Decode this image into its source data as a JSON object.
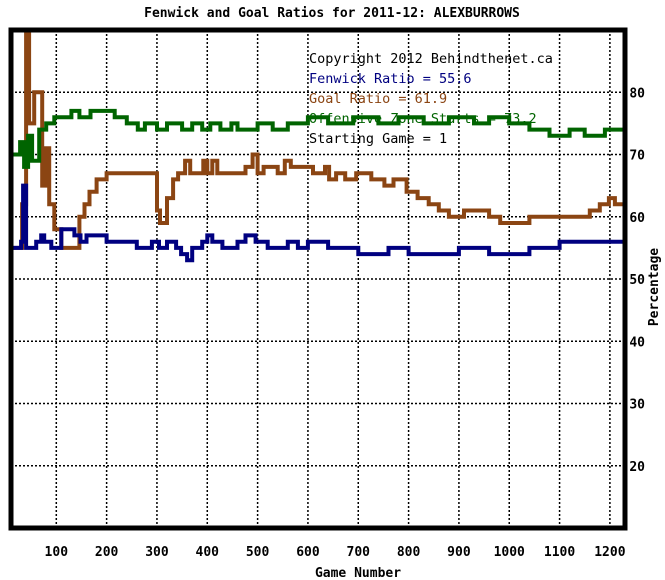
{
  "chart_data": {
    "type": "line",
    "title": "Fenwick and Goal Ratios for 2011-12: ALEXBURROWS",
    "xlabel": "Game Number",
    "ylabel": "Percentage",
    "xlim": [
      10,
      1230
    ],
    "ylim": [
      10,
      90
    ],
    "x_ticks": [
      100,
      200,
      300,
      400,
      500,
      600,
      700,
      800,
      900,
      1000,
      1100,
      1200
    ],
    "y_ticks": [
      20,
      30,
      40,
      50,
      60,
      70,
      80
    ],
    "grid": true,
    "legend_position": "top-right",
    "annotations": [
      {
        "text": "Copyright 2012 Behindthenet.ca",
        "color": "#000000"
      },
      {
        "text": "Fenwick Ratio = 55.6",
        "color": "#000080"
      },
      {
        "text": "Goal Ratio = 61.9",
        "color": "#8b4513"
      },
      {
        "text": "Offensive Zone Starts = 73.2",
        "color": "#006400"
      },
      {
        "text": "Starting Game = 1",
        "color": "#000000"
      }
    ],
    "series": [
      {
        "color": "#8b4513",
        "points": [
          [
            10,
            55
          ],
          [
            32,
            55
          ],
          [
            32,
            62
          ],
          [
            40,
            62
          ],
          [
            40,
            90
          ],
          [
            46,
            90
          ],
          [
            46,
            75
          ],
          [
            56,
            75
          ],
          [
            56,
            80
          ],
          [
            72,
            80
          ],
          [
            72,
            65
          ],
          [
            80,
            65
          ],
          [
            80,
            71
          ],
          [
            86,
            71
          ],
          [
            86,
            62
          ],
          [
            96,
            62
          ],
          [
            96,
            58
          ],
          [
            110,
            58
          ],
          [
            110,
            55
          ],
          [
            146,
            55
          ],
          [
            146,
            60
          ],
          [
            156,
            60
          ],
          [
            156,
            62
          ],
          [
            166,
            62
          ],
          [
            166,
            64
          ],
          [
            180,
            64
          ],
          [
            180,
            66
          ],
          [
            200,
            66
          ],
          [
            200,
            67
          ],
          [
            300,
            67
          ],
          [
            300,
            61
          ],
          [
            306,
            61
          ],
          [
            306,
            59
          ],
          [
            320,
            59
          ],
          [
            320,
            63
          ],
          [
            332,
            63
          ],
          [
            332,
            66
          ],
          [
            342,
            66
          ],
          [
            342,
            67
          ],
          [
            356,
            67
          ],
          [
            356,
            69
          ],
          [
            366,
            69
          ],
          [
            366,
            67
          ],
          [
            392,
            67
          ],
          [
            392,
            69
          ],
          [
            400,
            69
          ],
          [
            400,
            67
          ],
          [
            410,
            67
          ],
          [
            410,
            69
          ],
          [
            420,
            69
          ],
          [
            420,
            67
          ],
          [
            476,
            67
          ],
          [
            476,
            68
          ],
          [
            490,
            68
          ],
          [
            490,
            70
          ],
          [
            500,
            70
          ],
          [
            500,
            67
          ],
          [
            512,
            67
          ],
          [
            512,
            68
          ],
          [
            540,
            68
          ],
          [
            540,
            67
          ],
          [
            554,
            67
          ],
          [
            554,
            69
          ],
          [
            566,
            69
          ],
          [
            566,
            68
          ],
          [
            610,
            68
          ],
          [
            610,
            67
          ],
          [
            634,
            67
          ],
          [
            634,
            68
          ],
          [
            642,
            68
          ],
          [
            642,
            66
          ],
          [
            656,
            66
          ],
          [
            656,
            67
          ],
          [
            674,
            67
          ],
          [
            674,
            66
          ],
          [
            696,
            66
          ],
          [
            696,
            67
          ],
          [
            726,
            67
          ],
          [
            726,
            66
          ],
          [
            752,
            66
          ],
          [
            752,
            65
          ],
          [
            770,
            65
          ],
          [
            770,
            66
          ],
          [
            796,
            66
          ],
          [
            796,
            64
          ],
          [
            818,
            64
          ],
          [
            818,
            63
          ],
          [
            840,
            63
          ],
          [
            840,
            62
          ],
          [
            860,
            62
          ],
          [
            860,
            61
          ],
          [
            880,
            61
          ],
          [
            880,
            60
          ],
          [
            910,
            60
          ],
          [
            910,
            61
          ],
          [
            960,
            61
          ],
          [
            960,
            60
          ],
          [
            982,
            60
          ],
          [
            982,
            59
          ],
          [
            1040,
            59
          ],
          [
            1040,
            60
          ],
          [
            1160,
            60
          ],
          [
            1160,
            61
          ],
          [
            1180,
            61
          ],
          [
            1180,
            62
          ],
          [
            1198,
            62
          ],
          [
            1198,
            63
          ],
          [
            1210,
            63
          ],
          [
            1210,
            62
          ],
          [
            1225,
            62
          ]
        ]
      },
      {
        "color": "#006400",
        "points": [
          [
            10,
            70
          ],
          [
            28,
            70
          ],
          [
            28,
            72
          ],
          [
            36,
            72
          ],
          [
            36,
            68
          ],
          [
            44,
            68
          ],
          [
            44,
            73
          ],
          [
            52,
            73
          ],
          [
            52,
            69
          ],
          [
            66,
            69
          ],
          [
            66,
            74
          ],
          [
            80,
            74
          ],
          [
            80,
            75
          ],
          [
            96,
            75
          ],
          [
            96,
            76
          ],
          [
            130,
            76
          ],
          [
            130,
            77
          ],
          [
            146,
            77
          ],
          [
            146,
            76
          ],
          [
            168,
            76
          ],
          [
            168,
            77
          ],
          [
            216,
            77
          ],
          [
            216,
            76
          ],
          [
            240,
            76
          ],
          [
            240,
            75
          ],
          [
            262,
            75
          ],
          [
            262,
            74
          ],
          [
            276,
            74
          ],
          [
            276,
            75
          ],
          [
            300,
            75
          ],
          [
            300,
            74
          ],
          [
            320,
            74
          ],
          [
            320,
            75
          ],
          [
            350,
            75
          ],
          [
            350,
            74
          ],
          [
            370,
            74
          ],
          [
            370,
            75
          ],
          [
            390,
            75
          ],
          [
            390,
            74
          ],
          [
            406,
            74
          ],
          [
            406,
            75
          ],
          [
            426,
            75
          ],
          [
            426,
            74
          ],
          [
            448,
            74
          ],
          [
            448,
            75
          ],
          [
            460,
            75
          ],
          [
            460,
            74
          ],
          [
            500,
            74
          ],
          [
            500,
            75
          ],
          [
            530,
            75
          ],
          [
            530,
            74
          ],
          [
            560,
            74
          ],
          [
            560,
            75
          ],
          [
            600,
            75
          ],
          [
            600,
            76
          ],
          [
            640,
            76
          ],
          [
            640,
            75
          ],
          [
            690,
            75
          ],
          [
            690,
            76
          ],
          [
            740,
            76
          ],
          [
            740,
            75
          ],
          [
            780,
            75
          ],
          [
            780,
            76
          ],
          [
            830,
            76
          ],
          [
            830,
            75
          ],
          [
            880,
            75
          ],
          [
            880,
            76
          ],
          [
            930,
            76
          ],
          [
            930,
            75
          ],
          [
            960,
            75
          ],
          [
            960,
            76
          ],
          [
            1000,
            76
          ],
          [
            1000,
            75
          ],
          [
            1040,
            75
          ],
          [
            1040,
            74
          ],
          [
            1080,
            74
          ],
          [
            1080,
            73
          ],
          [
            1120,
            73
          ],
          [
            1120,
            74
          ],
          [
            1150,
            74
          ],
          [
            1150,
            73
          ],
          [
            1190,
            73
          ],
          [
            1190,
            74
          ],
          [
            1225,
            74
          ]
        ]
      },
      {
        "color": "#000080",
        "points": [
          [
            10,
            55
          ],
          [
            30,
            55
          ],
          [
            30,
            56
          ],
          [
            34,
            56
          ],
          [
            34,
            65
          ],
          [
            40,
            65
          ],
          [
            40,
            55
          ],
          [
            60,
            55
          ],
          [
            60,
            56
          ],
          [
            70,
            56
          ],
          [
            70,
            57
          ],
          [
            76,
            57
          ],
          [
            76,
            56
          ],
          [
            90,
            56
          ],
          [
            90,
            55
          ],
          [
            110,
            55
          ],
          [
            110,
            58
          ],
          [
            136,
            58
          ],
          [
            136,
            57
          ],
          [
            148,
            57
          ],
          [
            148,
            56
          ],
          [
            160,
            56
          ],
          [
            160,
            57
          ],
          [
            200,
            57
          ],
          [
            200,
            56
          ],
          [
            260,
            56
          ],
          [
            260,
            55
          ],
          [
            290,
            55
          ],
          [
            290,
            56
          ],
          [
            304,
            56
          ],
          [
            304,
            55
          ],
          [
            320,
            55
          ],
          [
            320,
            56
          ],
          [
            338,
            56
          ],
          [
            338,
            55
          ],
          [
            348,
            55
          ],
          [
            348,
            54
          ],
          [
            360,
            54
          ],
          [
            360,
            53
          ],
          [
            370,
            53
          ],
          [
            370,
            55
          ],
          [
            390,
            55
          ],
          [
            390,
            56
          ],
          [
            400,
            56
          ],
          [
            400,
            57
          ],
          [
            410,
            57
          ],
          [
            410,
            56
          ],
          [
            430,
            56
          ],
          [
            430,
            55
          ],
          [
            460,
            55
          ],
          [
            460,
            56
          ],
          [
            476,
            56
          ],
          [
            476,
            57
          ],
          [
            496,
            57
          ],
          [
            496,
            56
          ],
          [
            520,
            56
          ],
          [
            520,
            55
          ],
          [
            560,
            55
          ],
          [
            560,
            56
          ],
          [
            580,
            56
          ],
          [
            580,
            55
          ],
          [
            600,
            55
          ],
          [
            600,
            56
          ],
          [
            640,
            56
          ],
          [
            640,
            55
          ],
          [
            700,
            55
          ],
          [
            700,
            54
          ],
          [
            760,
            54
          ],
          [
            760,
            55
          ],
          [
            800,
            55
          ],
          [
            800,
            54
          ],
          [
            900,
            54
          ],
          [
            900,
            55
          ],
          [
            960,
            55
          ],
          [
            960,
            54
          ],
          [
            1040,
            54
          ],
          [
            1040,
            55
          ],
          [
            1100,
            55
          ],
          [
            1100,
            56
          ],
          [
            1225,
            56
          ]
        ]
      }
    ]
  }
}
